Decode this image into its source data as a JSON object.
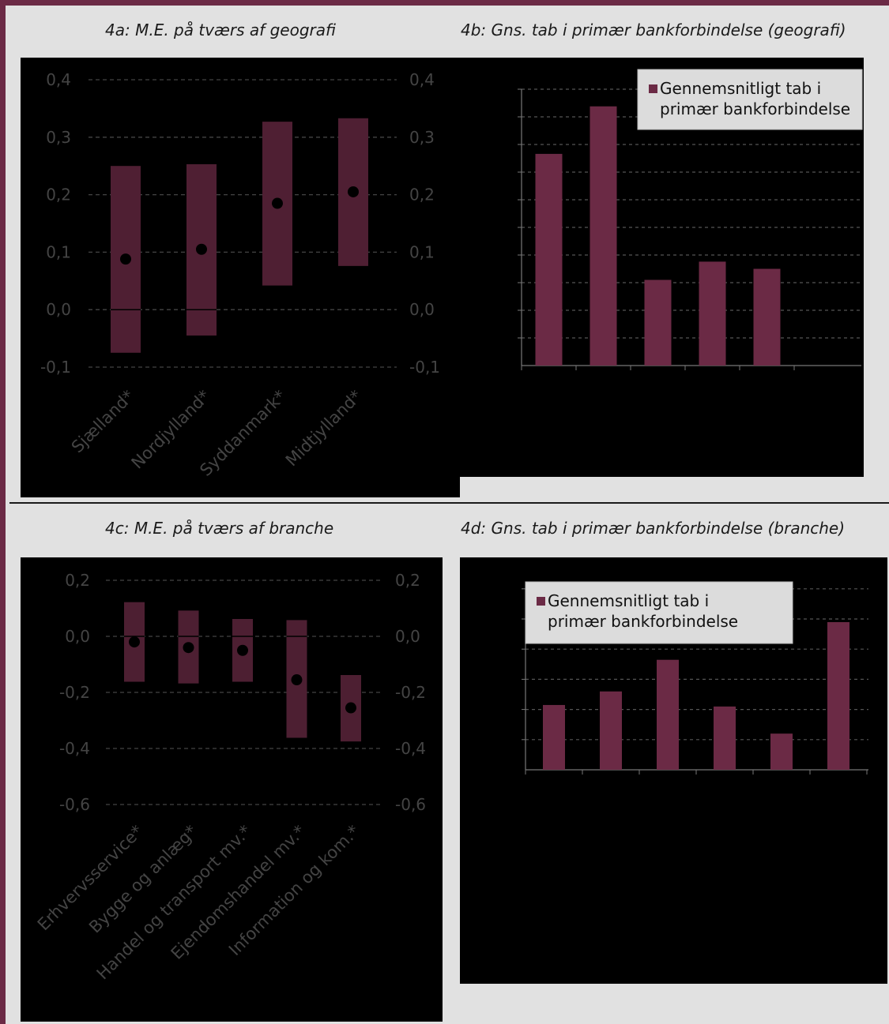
{
  "colors": {
    "accent": "#6b2a45",
    "bar": "#6b2a45",
    "box_a": "#4f1f33",
    "box_c": "#4d1f32",
    "text_dark": "#444444",
    "text_light": "#e8e8e8"
  },
  "titles": {
    "a": "4a: M.E. på tværs af geografi",
    "b": "4b: Gns. tab i primær bankforbindelse (geografi)",
    "c": "4c: M.E. på tværs af branche",
    "d": "4d: Gns. tab i primær bankforbindelse (branche)"
  },
  "chart_data": [
    {
      "id": "4a",
      "type": "scatter",
      "title": "4a: M.E. på tværs af geografi",
      "categories": [
        "Sjælland*",
        "Nordjylland*",
        "Syddanmark*",
        "Midtjylland*"
      ],
      "points": [
        0.088,
        0.105,
        0.185,
        0.205
      ],
      "intervals": [
        [
          -0.075,
          0.25
        ],
        [
          -0.045,
          0.253
        ],
        [
          0.042,
          0.327
        ],
        [
          0.076,
          0.333
        ]
      ],
      "yticks": [
        "-0,1",
        "0,0",
        "0,1",
        "0,2",
        "0,3",
        "0,4"
      ],
      "ylim": [
        -0.1,
        0.4
      ],
      "grid": true
    },
    {
      "id": "4b",
      "type": "bar",
      "title": "4b: Gns. tab i primær bankforbindelse (geografi)",
      "categories": [
        "",
        "",
        "",
        "",
        ""
      ],
      "values": [
        0.383,
        0.469,
        0.155,
        0.188,
        0.175
      ],
      "ylim": [
        0,
        0.5
      ],
      "grid": true,
      "legend": {
        "label": "Gennemsnitligt tab i primær bankforbindelse",
        "line1": "Gennemsnitligt tab i",
        "line2": "primær bankforbindelse",
        "placement": "top-right"
      }
    },
    {
      "id": "4c",
      "type": "scatter",
      "title": "4c: M.E. på tværs af branche",
      "categories": [
        "Erhvervsservice*",
        "Bygge og anlæg*",
        "Handel og transport mv.*",
        "Ejendomshandel mv.*",
        "Information og kom.*"
      ],
      "points": [
        -0.02,
        -0.04,
        -0.05,
        -0.155,
        -0.255
      ],
      "intervals": [
        [
          -0.162,
          0.122
        ],
        [
          -0.168,
          0.092
        ],
        [
          -0.162,
          0.062
        ],
        [
          -0.362,
          0.058
        ],
        [
          -0.375,
          -0.138
        ]
      ],
      "yticks": [
        "-0,6",
        "-0,4",
        "-0,2",
        "0,0",
        "0,2"
      ],
      "ylim": [
        -0.6,
        0.2
      ],
      "grid": true
    },
    {
      "id": "4d",
      "type": "bar",
      "title": "4d: Gns. tab i primær bankforbindelse (branche)",
      "categories": [
        "",
        "",
        "",
        "",
        "",
        ""
      ],
      "values": [
        0.215,
        0.26,
        0.365,
        0.21,
        0.12,
        0.49
      ],
      "ylim": [
        0,
        0.6
      ],
      "grid": true,
      "legend": {
        "label": "Gennemsnitligt tab i primær bankforbindelse",
        "line1": "Gennemsnitligt tab i",
        "line2": "primær bankforbindelse",
        "placement": "top-left"
      }
    }
  ]
}
